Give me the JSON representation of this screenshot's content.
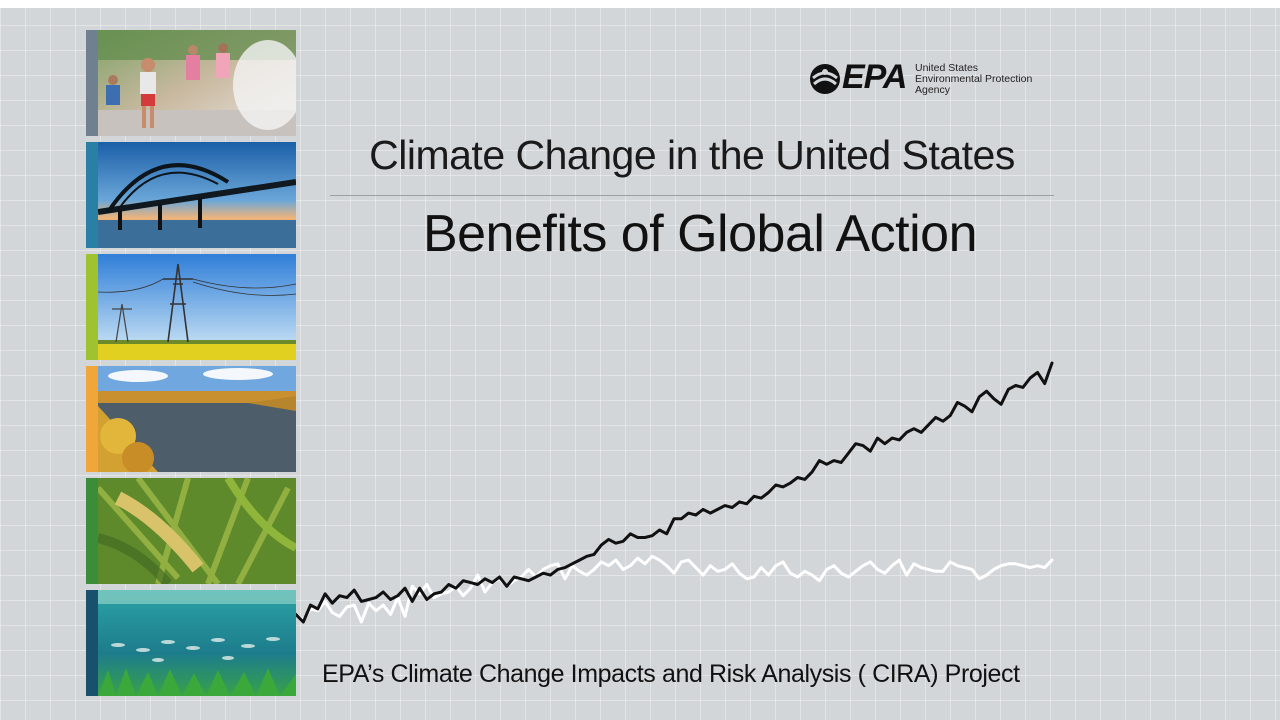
{
  "logo": {
    "acronym": "EPA",
    "agency_lines": [
      "United States",
      "Environmental Protection",
      "Agency"
    ],
    "icon": "epa-flower-icon"
  },
  "title": "Climate Change in the United States",
  "subtitle": "Benefits of Global Action",
  "footer": "EPA’s Climate Change Impacts and Risk Analysis ( CIRA) Project",
  "tiles": [
    {
      "name": "children-splash-pad",
      "stripe": "#6f8191"
    },
    {
      "name": "bridge-at-sunset",
      "stripe": "#2a7fa5"
    },
    {
      "name": "power-lines-field",
      "stripe": "#9fc231"
    },
    {
      "name": "river-autumn",
      "stripe": "#f0a63a"
    },
    {
      "name": "corn-crop",
      "stripe": "#3c8d3a"
    },
    {
      "name": "underwater-fish",
      "stripe": "#19506b"
    }
  ],
  "chart_data": {
    "type": "line",
    "title": "",
    "xlabel": "",
    "ylabel": "",
    "series": [
      {
        "color": "#111111",
        "values": [
          7,
          3,
          12,
          10,
          18,
          13,
          17,
          16,
          20,
          14,
          15,
          16,
          19,
          15,
          17,
          21,
          14,
          21,
          15,
          18,
          19,
          23,
          21,
          25,
          24,
          23,
          26,
          24,
          27,
          22,
          27,
          26,
          25,
          27,
          29,
          28,
          31,
          32,
          34,
          36,
          38,
          39,
          44,
          47,
          45,
          46,
          50,
          48,
          48,
          49,
          52,
          50,
          58,
          58,
          61,
          60,
          63,
          61,
          63,
          65,
          64,
          67,
          66,
          70,
          69,
          72,
          76,
          75,
          77,
          80,
          79,
          83,
          89,
          87,
          89,
          88,
          93,
          98,
          97,
          94,
          101,
          98,
          101,
          100,
          104,
          106,
          104,
          108,
          112,
          110,
          113,
          120,
          118,
          115,
          123,
          126,
          122,
          119,
          127,
          129,
          128,
          133,
          136,
          130,
          141
        ]
      },
      {
        "color": "#ffffff",
        "values": [
          7,
          4,
          10,
          9,
          14,
          8,
          6,
          11,
          12,
          3,
          13,
          9,
          12,
          7,
          16,
          6,
          22,
          18,
          23,
          16,
          18,
          19,
          22,
          17,
          21,
          28,
          19,
          24,
          26,
          22,
          25,
          27,
          31,
          27,
          31,
          33,
          34,
          26,
          33,
          30,
          28,
          31,
          35,
          33,
          36,
          31,
          33,
          37,
          34,
          38,
          36,
          33,
          29,
          35,
          36,
          32,
          28,
          33,
          30,
          31,
          34,
          29,
          26,
          27,
          32,
          28,
          33,
          35,
          29,
          27,
          30,
          28,
          25,
          31,
          33,
          29,
          27,
          30,
          33,
          35,
          31,
          29,
          33,
          36,
          28,
          34,
          32,
          31,
          30,
          30,
          35,
          33,
          32,
          31,
          26,
          28,
          31,
          33,
          34,
          34,
          33,
          32,
          33,
          32,
          36
        ]
      }
    ]
  }
}
